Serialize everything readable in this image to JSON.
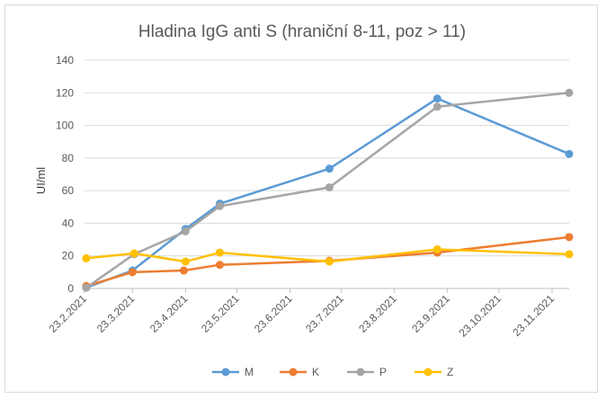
{
  "chart_data": {
    "type": "line",
    "title": "Hladina IgG anti S (hraniční 8-11, poz > 11)",
    "ylabel": "UI/ml",
    "xlabel": "",
    "ylim": [
      0,
      140
    ],
    "yticks": [
      0,
      20,
      40,
      60,
      80,
      100,
      120,
      140
    ],
    "xlim": [
      "2021-02-23",
      "2021-12-03"
    ],
    "xticks": [
      "2021-02-23",
      "2021-03-23",
      "2021-04-23",
      "2021-05-23",
      "2021-06-23",
      "2021-07-23",
      "2021-08-23",
      "2021-09-23",
      "2021-10-23",
      "2021-11-23"
    ],
    "xtick_labels": [
      "23.2.2021",
      "23.3.2021",
      "23.4.2021",
      "23.5.2021",
      "23.6.2021",
      "23.7.2021",
      "23.8.2021",
      "23.9.2021",
      "23.10.2021",
      "23.11.2021"
    ],
    "grid": "horizontal",
    "legend": "bottom",
    "series": [
      {
        "name": "M",
        "color": "#5b9bd5",
        "points": [
          [
            "2021-02-24",
            0.5
          ],
          [
            "2021-03-23",
            11
          ],
          [
            "2021-04-23",
            36.5
          ],
          [
            "2021-05-13",
            52
          ],
          [
            "2021-07-16",
            73.5
          ],
          [
            "2021-09-17",
            116.5
          ],
          [
            "2021-12-03",
            82.5
          ]
        ]
      },
      {
        "name": "K",
        "color": "#ed7d31",
        "points": [
          [
            "2021-02-24",
            1.5
          ],
          [
            "2021-03-23",
            10
          ],
          [
            "2021-04-22",
            11
          ],
          [
            "2021-05-13",
            14.5
          ],
          [
            "2021-07-16",
            17
          ],
          [
            "2021-09-17",
            22
          ],
          [
            "2021-12-03",
            31.5
          ]
        ]
      },
      {
        "name": "P",
        "color": "#a5a5a5",
        "points": [
          [
            "2021-02-24",
            0.5
          ],
          [
            "2021-03-24",
            21
          ],
          [
            "2021-04-23",
            35
          ],
          [
            "2021-05-13",
            50.5
          ],
          [
            "2021-07-16",
            62
          ],
          [
            "2021-09-17",
            111.5
          ],
          [
            "2021-12-03",
            120
          ]
        ]
      },
      {
        "name": "Z",
        "color": "#ffc000",
        "points": [
          [
            "2021-02-24",
            18.5
          ],
          [
            "2021-03-24",
            21.5
          ],
          [
            "2021-04-23",
            16.5
          ],
          [
            "2021-05-13",
            22
          ],
          [
            "2021-07-16",
            16.5
          ],
          [
            "2021-09-17",
            24
          ],
          [
            "2021-12-03",
            21
          ]
        ]
      }
    ]
  }
}
